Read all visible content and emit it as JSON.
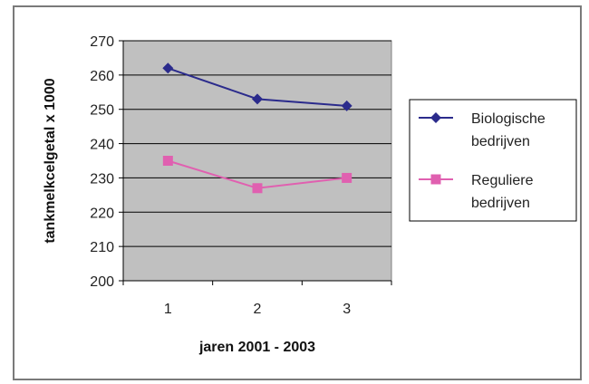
{
  "chart_data": {
    "type": "line",
    "title": "",
    "xlabel": "jaren 2001 - 2003",
    "ylabel": "tankmelkcelgetal x 1000",
    "categories": [
      "1",
      "2",
      "3"
    ],
    "ylim": [
      200,
      270
    ],
    "yticks": [
      200,
      210,
      220,
      230,
      240,
      250,
      260,
      270
    ],
    "grid": true,
    "legend_position": "right",
    "series": [
      {
        "name": "Biologische bedrijven",
        "legend_lines": [
          "Biologische",
          "bedrijven"
        ],
        "values": [
          262,
          253,
          251
        ],
        "color": "#2b2b8c",
        "marker": "diamond"
      },
      {
        "name": "Reguliere bedrijven",
        "legend_lines": [
          "Reguliere",
          "bedrijven"
        ],
        "values": [
          235,
          227,
          230
        ],
        "color": "#e060b0",
        "marker": "square"
      }
    ],
    "plot_background": "#c0c0c0"
  }
}
